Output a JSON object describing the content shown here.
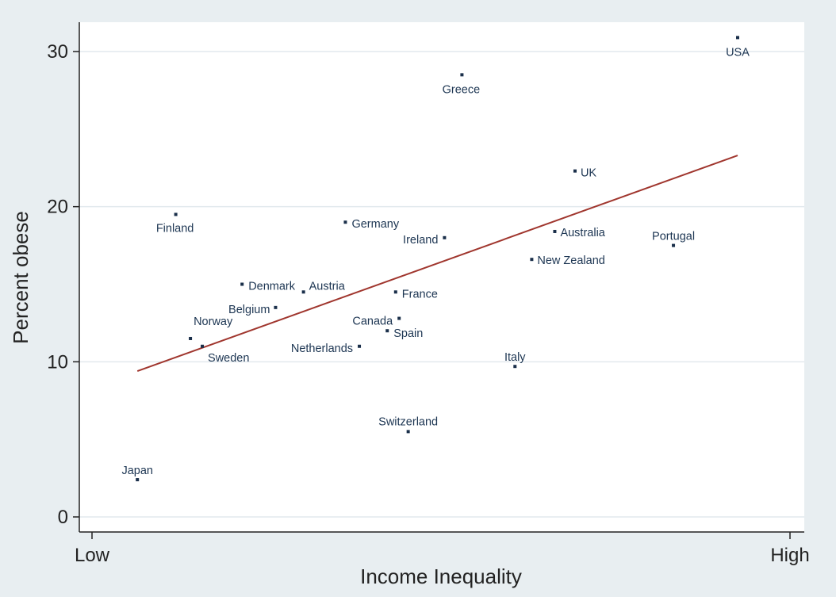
{
  "chart_data": {
    "type": "scatter",
    "xlabel": "Income Inequality",
    "ylabel": "Percent obese",
    "x_tick_labels": [
      "Low",
      "High"
    ],
    "x_tick_values": [
      0,
      100
    ],
    "y_ticks": [
      0,
      10,
      20,
      30
    ],
    "xlim": [
      0,
      100
    ],
    "ylim": [
      -1.2,
      32
    ],
    "grid": true,
    "points": [
      {
        "label": "USA",
        "x": 92.5,
        "y": 30.9
      },
      {
        "label": "Greece",
        "x": 53.0,
        "y": 28.5
      },
      {
        "label": "UK",
        "x": 69.2,
        "y": 22.3
      },
      {
        "label": "Finland",
        "x": 12.0,
        "y": 19.5
      },
      {
        "label": "Germany",
        "x": 36.3,
        "y": 19.0
      },
      {
        "label": "Ireland",
        "x": 50.5,
        "y": 18.0
      },
      {
        "label": "Australia",
        "x": 66.3,
        "y": 18.4
      },
      {
        "label": "Portugal",
        "x": 83.3,
        "y": 17.5
      },
      {
        "label": "New Zealand",
        "x": 63.0,
        "y": 16.6
      },
      {
        "label": "Denmark",
        "x": 21.5,
        "y": 15.0
      },
      {
        "label": "Austria",
        "x": 30.3,
        "y": 14.5
      },
      {
        "label": "France",
        "x": 43.5,
        "y": 14.5
      },
      {
        "label": "Belgium",
        "x": 26.3,
        "y": 13.5
      },
      {
        "label": "Canada",
        "x": 44.0,
        "y": 12.8
      },
      {
        "label": "Spain",
        "x": 42.3,
        "y": 12.0
      },
      {
        "label": "Norway",
        "x": 14.1,
        "y": 11.5
      },
      {
        "label": "Sweden",
        "x": 15.8,
        "y": 11.0
      },
      {
        "label": "Netherlands",
        "x": 38.3,
        "y": 11.0
      },
      {
        "label": "Italy",
        "x": 60.6,
        "y": 9.7
      },
      {
        "label": "Switzerland",
        "x": 45.3,
        "y": 5.5
      },
      {
        "label": "Japan",
        "x": 6.5,
        "y": 2.4
      }
    ],
    "fit_line": {
      "x": [
        6.5,
        92.5
      ],
      "y": [
        9.4,
        23.3
      ]
    }
  },
  "colors": {
    "background": "#e8eef1",
    "plot_area": "#ffffff",
    "grid": "#e2e9ed",
    "point": "#1a2f4a",
    "fit_line": "#a0362e",
    "axis": "#222222"
  }
}
